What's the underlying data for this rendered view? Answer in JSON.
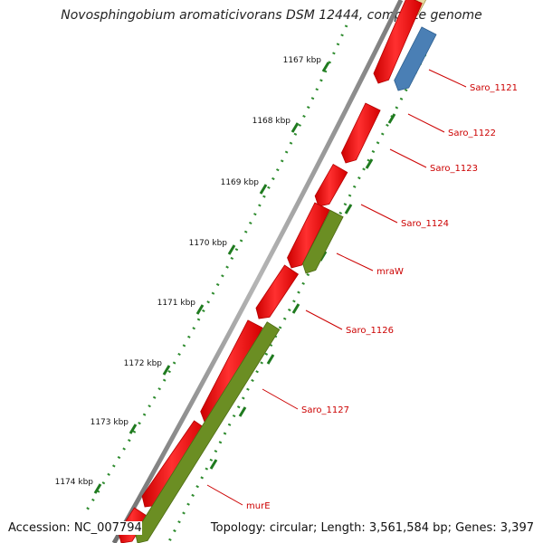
{
  "title": "Novosphingobium aromaticivorans DSM 12444, complete genome",
  "footer": {
    "accession": "Accession: NC_007794",
    "summary": "Topology: circular; Length: 3,561,584 bp; Genes: 3,397"
  },
  "ticks": [
    "1167 kbp",
    "1168 kbp",
    "1169 kbp",
    "1170 kbp",
    "1171 kbp",
    "1172 kbp",
    "1173 kbp",
    "1174 kbp"
  ],
  "genes": [
    {
      "label": "Saro_1121",
      "track": "reverse",
      "color": "#4a7fb5"
    },
    {
      "label": "Saro_1122",
      "track": "forward",
      "color": "#ff0000"
    },
    {
      "label": "Saro_1123",
      "track": "forward",
      "color": "#ff0000"
    },
    {
      "label": "Saro_1124",
      "track": "forward",
      "color": "#ff0000"
    },
    {
      "label": "mraW",
      "track": "reverse",
      "color": "#6b8e23"
    },
    {
      "label": "Saro_1126",
      "track": "forward",
      "color": "#ff0000"
    },
    {
      "label": "Saro_1127",
      "track": "forward",
      "color": "#ff0000"
    },
    {
      "label": "murE",
      "track": "reverse",
      "color": "#6b8e23"
    }
  ],
  "colors": {
    "label": "#cc0000",
    "backbone": "#808080",
    "gc_dots": "#2e8b2e",
    "top_gene_khaki": "#c8b96a"
  }
}
